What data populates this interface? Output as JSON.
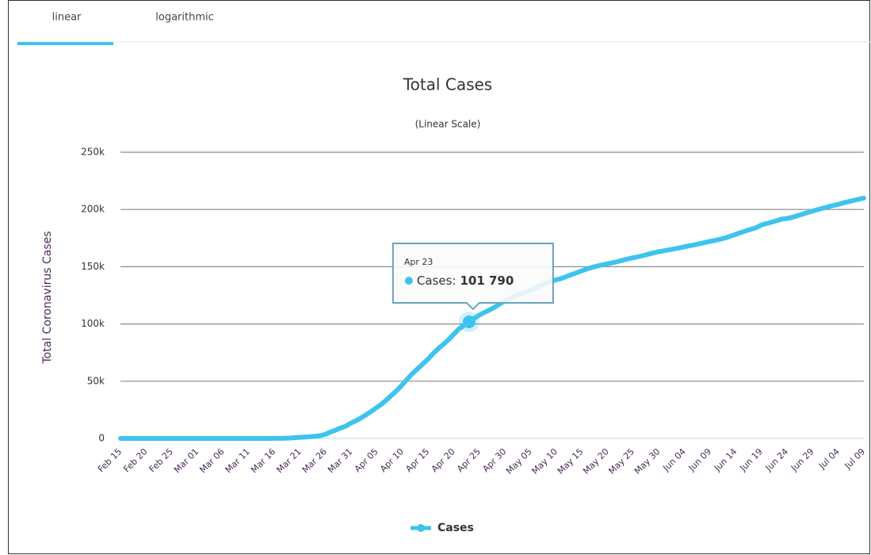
{
  "tabs": [
    "linear",
    "logarithmic"
  ],
  "chart_data": {
    "type": "line",
    "title": "Total Cases",
    "subtitle": "(Linear Scale)",
    "y_label": "Total Coronavirus Cases",
    "categories": [
      "Feb 15",
      null,
      null,
      null,
      null,
      "Feb 20",
      null,
      null,
      null,
      null,
      "Feb 25",
      null,
      null,
      null,
      null,
      "Mar 01",
      null,
      null,
      null,
      null,
      "Mar 06",
      null,
      null,
      null,
      null,
      "Mar 11",
      null,
      null,
      null,
      null,
      "Mar 16",
      null,
      null,
      null,
      null,
      "Mar 21",
      null,
      null,
      null,
      null,
      "Mar 26",
      null,
      null,
      null,
      null,
      "Mar 31",
      null,
      null,
      null,
      null,
      "Apr 05",
      null,
      null,
      null,
      null,
      "Apr 10",
      null,
      null,
      null,
      null,
      "Apr 15",
      null,
      null,
      null,
      null,
      "Apr 20",
      null,
      null,
      null,
      null,
      "Apr 25",
      null,
      null,
      null,
      null,
      "Apr 30",
      null,
      null,
      null,
      null,
      "May 05",
      null,
      null,
      null,
      null,
      "May 10",
      null,
      null,
      null,
      null,
      "May 15",
      null,
      null,
      null,
      null,
      "May 20",
      null,
      null,
      null,
      null,
      "May 25",
      null,
      null,
      null,
      null,
      "May 30",
      null,
      null,
      null,
      null,
      "Jun 04",
      null,
      null,
      null,
      null,
      "Jun 09",
      null,
      null,
      null,
      null,
      "Jun 14",
      null,
      null,
      null,
      null,
      "Jun 19",
      null,
      null,
      null,
      null,
      "Jun 24",
      null,
      null,
      null,
      null,
      "Jun 29",
      null,
      null,
      null,
      null,
      "Jul 04",
      null,
      null,
      null,
      null,
      "Jul 09"
    ],
    "series": [
      {
        "name": "Cases",
        "color": "#3ec3ee",
        "values": [
          0,
          0,
          0,
          0,
          0,
          0,
          0,
          0,
          0,
          0,
          0,
          0,
          0,
          0,
          0,
          0,
          0,
          0,
          0,
          0,
          0,
          0,
          0,
          0,
          0,
          1,
          1,
          5,
          6,
          18,
          47,
          98,
          191,
          359,
          670,
          947,
          1236,
          1529,
          1872,
          2433,
          3629,
          5698,
          7402,
          9217,
          10827,
          13531,
          15679,
          18135,
          20921,
          23934,
          27069,
          30217,
          34109,
          38226,
          42282,
          47029,
          52167,
          56956,
          61049,
          65111,
          69392,
          74193,
          78546,
          82329,
          86306,
          90980,
          95591,
          98674,
          101790,
          104912,
          107773,
          110130,
          112261,
          114653,
          117589,
          120204,
          122392,
          124375,
          126045,
          127659,
          129491,
          131744,
          133721,
          135569,
          137115,
          138657,
          139771,
          141475,
          143114,
          144749,
          146457,
          148067,
          149435,
          150593,
          151615,
          152587,
          153548,
          154500,
          155686,
          156827,
          157814,
          158762,
          159797,
          160979,
          162120,
          163103,
          163942,
          164769,
          165555,
          166422,
          167410,
          168340,
          169218,
          170132,
          171121,
          172114,
          173036,
          174023,
          175218,
          176677,
          178239,
          179831,
          181298,
          182727,
          184031,
          186493,
          187685,
          188897,
          190165,
          191657,
          192115,
          193115,
          194511,
          195883,
          197239,
          198613,
          199906,
          201098,
          202284,
          203456,
          204428,
          205758,
          206844,
          207897,
          208938,
          209962
        ]
      }
    ],
    "ylim": [
      0,
      250000
    ],
    "yticks": [
      0,
      {
        "value": 50000,
        "label": "50k"
      },
      {
        "value": 100000,
        "label": "100k"
      },
      {
        "value": 150000,
        "label": "150k"
      },
      {
        "value": 200000,
        "label": "200k"
      },
      {
        "value": 250000,
        "label": "250k"
      }
    ],
    "grid": true,
    "legend": "bottom",
    "tooltip": {
      "date": "Apr 23",
      "label": "Cases:",
      "value": 101790,
      "value_label": "101 790"
    }
  }
}
